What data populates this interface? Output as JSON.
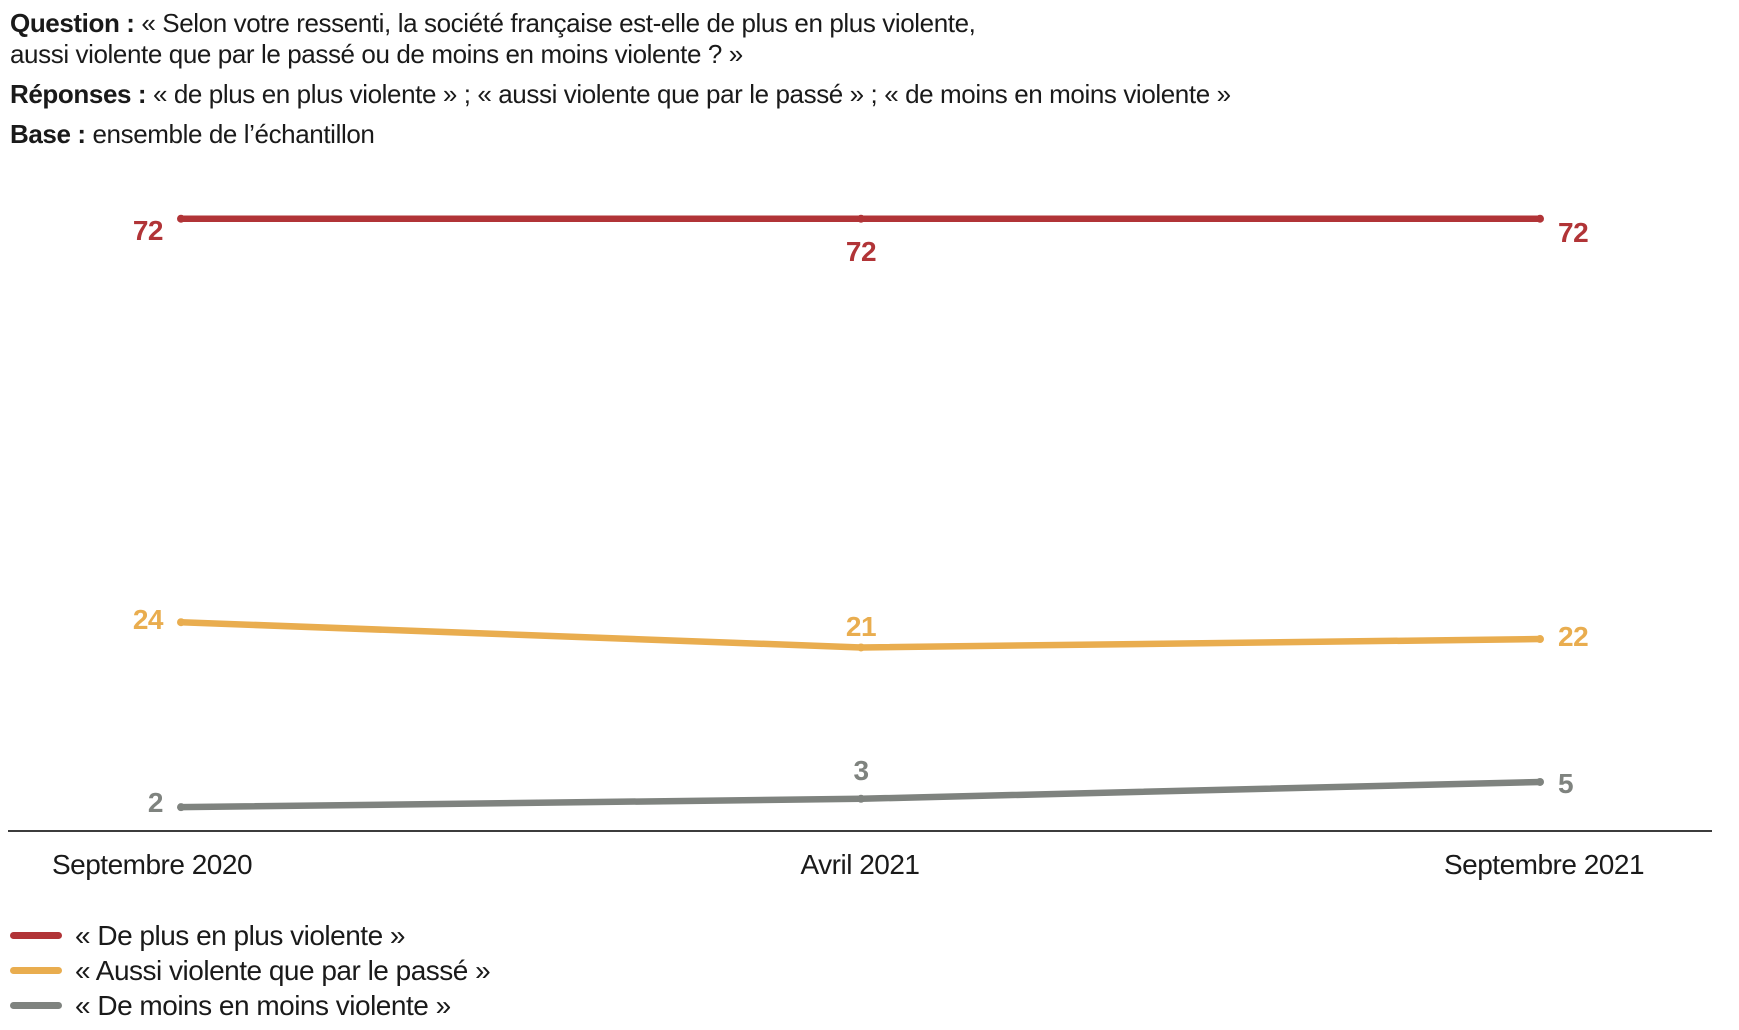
{
  "header": {
    "question_label": "Question :",
    "question_line1": "« Selon votre ressenti, la société française est-elle de plus en plus violente,",
    "question_line2": "aussi violente que par le passé ou de moins en moins violente ? »",
    "responses_label": "Réponses :",
    "responses_text": "« de plus en plus violente » ; « aussi violente que par le passé » ; « de moins en moins violente »",
    "base_label": "Base :",
    "base_text": "ensemble de l’échantillon"
  },
  "chart_data": {
    "type": "line",
    "categories": [
      "Septembre 2020",
      "Avril 2021",
      "Septembre 2021"
    ],
    "series": [
      {
        "name": "« De plus en plus violente »",
        "values": [
          72,
          72,
          72
        ],
        "color": "#b13437"
      },
      {
        "name": "« Aussi violente que par le passé »",
        "values": [
          24,
          21,
          22
        ],
        "color": "#e9ad4f"
      },
      {
        "name": "« De moins en moins violente »",
        "values": [
          2,
          3,
          5
        ],
        "color": "#7f837f"
      }
    ],
    "ylim": [
      0,
      80
    ],
    "grid": false,
    "legend_position": "bottom-left",
    "axis_color": "#3c3c3c"
  }
}
